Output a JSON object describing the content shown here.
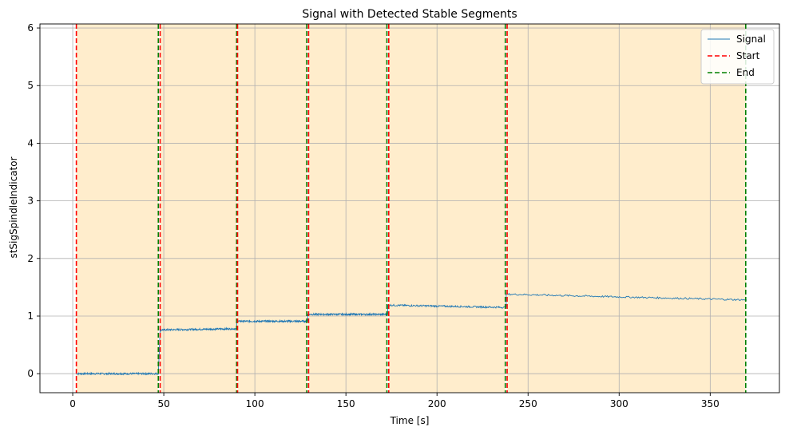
{
  "chart_data": {
    "type": "line",
    "title": "Signal with Detected Stable Segments",
    "xlabel": "Time [s]",
    "ylabel": "stSigSpindleIndicator",
    "xlim": [
      -18,
      388
    ],
    "ylim": [
      -0.33,
      6.07
    ],
    "xticks": [
      0,
      50,
      100,
      150,
      200,
      250,
      300,
      350
    ],
    "yticks": [
      0,
      1,
      2,
      3,
      4,
      5,
      6
    ],
    "grid": true,
    "legend_position": "top-right",
    "colors": {
      "signal": "#1f77b4",
      "start": "#ff0000",
      "end": "#008000",
      "segment_fill": "#ffedcc",
      "grid": "#b0b0b0"
    },
    "legend": [
      {
        "name": "Signal",
        "style": "solid",
        "color": "#1f77b4"
      },
      {
        "name": "Start",
        "style": "dashed",
        "color": "#ff0000"
      },
      {
        "name": "End",
        "style": "dashed",
        "color": "#008000"
      }
    ],
    "segments": [
      {
        "start": 2,
        "end": 47
      },
      {
        "start": 48,
        "end": 90
      },
      {
        "start": 90.5,
        "end": 128.5
      },
      {
        "start": 129.5,
        "end": 172.5
      },
      {
        "start": 173.5,
        "end": 237.5
      },
      {
        "start": 238.5,
        "end": 369.5
      }
    ],
    "signal_levels": [
      {
        "x_start": 2,
        "x_end": 47,
        "y_start": 0.0,
        "y_end": 0.0
      },
      {
        "x_start": 48,
        "x_end": 90,
        "y_start": 0.76,
        "y_end": 0.78
      },
      {
        "x_start": 90,
        "x_end": 129,
        "y_start": 0.91,
        "y_end": 0.91
      },
      {
        "x_start": 129,
        "x_end": 173,
        "y_start": 1.03,
        "y_end": 1.03
      },
      {
        "x_start": 173,
        "x_end": 238,
        "y_start": 1.19,
        "y_end": 1.15
      },
      {
        "x_start": 238,
        "x_end": 370,
        "y_start": 1.38,
        "y_end": 1.28
      }
    ]
  }
}
